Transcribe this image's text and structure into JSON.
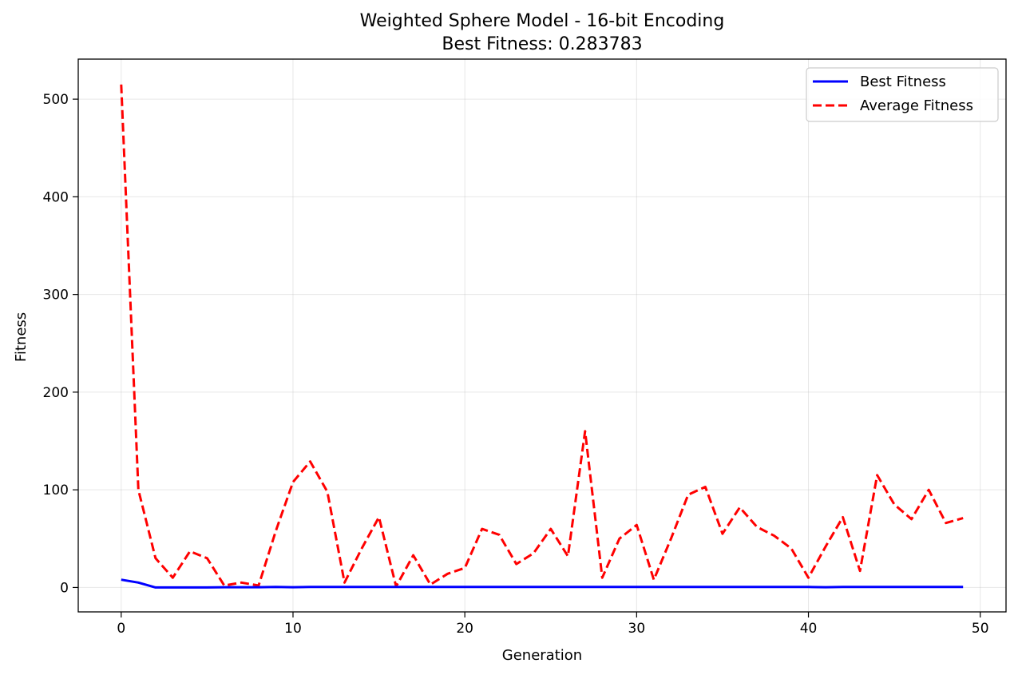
{
  "chart_data": {
    "type": "line",
    "title": "Weighted Sphere Model - 16-bit Encoding",
    "subtitle": "Best Fitness: 0.283783",
    "xlabel": "Generation",
    "ylabel": "Fitness",
    "xlim": [
      -2.5,
      51.5
    ],
    "ylim": [
      -25,
      541
    ],
    "xticks": [
      0,
      10,
      20,
      30,
      40,
      50
    ],
    "yticks": [
      0,
      100,
      200,
      300,
      400,
      500
    ],
    "grid": true,
    "legend_position": "top-right",
    "x": [
      0,
      1,
      2,
      3,
      4,
      5,
      6,
      7,
      8,
      9,
      10,
      11,
      12,
      13,
      14,
      15,
      16,
      17,
      18,
      19,
      20,
      21,
      22,
      23,
      24,
      25,
      26,
      27,
      28,
      29,
      30,
      31,
      32,
      33,
      34,
      35,
      36,
      37,
      38,
      39,
      40,
      41,
      42,
      43,
      44,
      45,
      46,
      47,
      48,
      49
    ],
    "series": [
      {
        "name": "Best Fitness",
        "color": "#0000ff",
        "style": "solid",
        "values": [
          8,
          5,
          0,
          0,
          0,
          0,
          0.3,
          0.3,
          0.3,
          0.5,
          0.3,
          0.5,
          0.5,
          0.5,
          0.5,
          0.5,
          0.5,
          0.5,
          0.5,
          0.5,
          0.5,
          0.5,
          0.5,
          0.5,
          0.5,
          0.5,
          0.5,
          0.5,
          0.5,
          0.5,
          0.5,
          0.5,
          0.5,
          0.5,
          0.5,
          0.5,
          0.5,
          0.5,
          0.5,
          0.5,
          0.5,
          0.3,
          0.5,
          0.5,
          0.5,
          0.5,
          0.5,
          0.5,
          0.5,
          0.5
        ]
      },
      {
        "name": "Average Fitness",
        "color": "#ff0000",
        "style": "dashed",
        "values": [
          515,
          100,
          30,
          10,
          37,
          30,
          2,
          5,
          2,
          58,
          108,
          129,
          98,
          5,
          40,
          72,
          1,
          33,
          3,
          14,
          20,
          60,
          54,
          24,
          35,
          60,
          32,
          160,
          10,
          50,
          64,
          8,
          50,
          95,
          103,
          55,
          82,
          62,
          53,
          40,
          10,
          42,
          72,
          17,
          115,
          85,
          70,
          100,
          66,
          71
        ]
      }
    ]
  }
}
